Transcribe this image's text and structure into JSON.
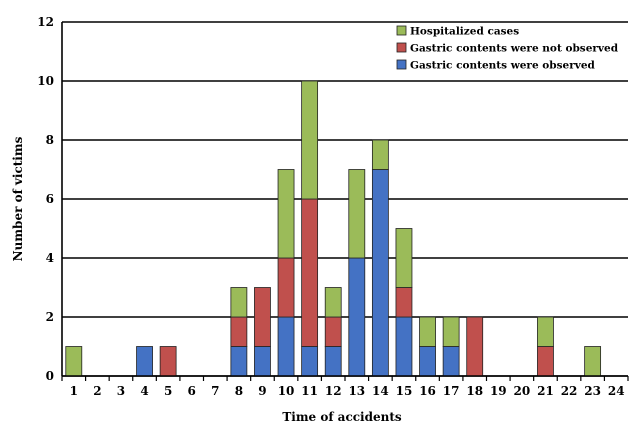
{
  "chart_data": {
    "type": "bar",
    "stacked": true,
    "xlabel": "Time of accidents",
    "ylabel": "Number of victims",
    "ylim": [
      0,
      12
    ],
    "yticks": [
      0,
      2,
      4,
      6,
      8,
      10,
      12
    ],
    "grid": true,
    "legend_position": "top-right",
    "categories": [
      "1",
      "2",
      "3",
      "4",
      "5",
      "6",
      "7",
      "8",
      "9",
      "10",
      "11",
      "12",
      "13",
      "14",
      "15",
      "16",
      "17",
      "18",
      "19",
      "20",
      "21",
      "22",
      "23",
      "24"
    ],
    "series": [
      {
        "name": "Gastric contents were observed",
        "color": "#4472C4",
        "values": [
          0,
          0,
          0,
          1,
          0,
          0,
          0,
          1,
          1,
          2,
          1,
          1,
          4,
          7,
          2,
          1,
          1,
          0,
          0,
          0,
          0,
          0,
          0,
          0
        ]
      },
      {
        "name": "Gastric contents were not observed",
        "color": "#C0504D",
        "values": [
          0,
          0,
          0,
          0,
          1,
          0,
          0,
          1,
          2,
          2,
          5,
          1,
          0,
          0,
          1,
          0,
          0,
          2,
          0,
          0,
          1,
          0,
          0,
          0
        ]
      },
      {
        "name": "Hospitalized  cases",
        "color": "#9BBB59",
        "values": [
          1,
          0,
          0,
          0,
          0,
          0,
          0,
          1,
          0,
          3,
          4,
          1,
          3,
          1,
          2,
          1,
          1,
          0,
          0,
          0,
          1,
          0,
          1,
          0
        ]
      }
    ],
    "legend_order": [
      2,
      1,
      0
    ]
  }
}
